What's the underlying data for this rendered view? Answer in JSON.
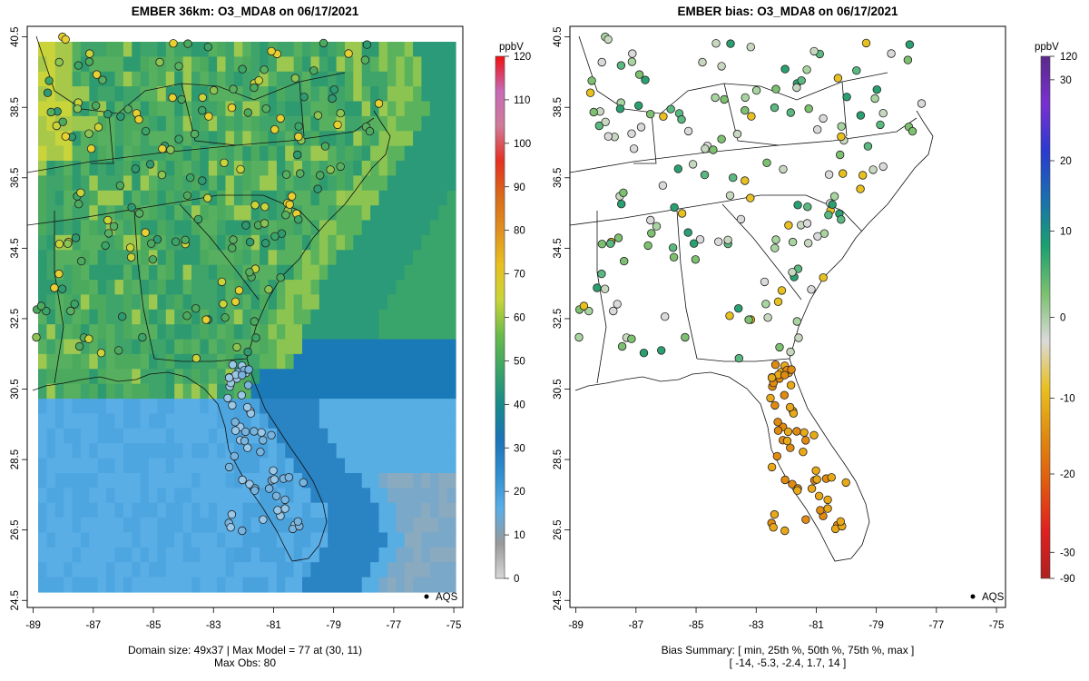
{
  "left_panel": {
    "title": "EMBER 36km: O3_MDA8 on 06/17/2021",
    "caption_line1": "Domain size: 49x37 | Max Model = 77 at (30, 11)",
    "caption_line2": "Max Obs: 80",
    "legend_symbol_label": "AQS",
    "colorbar_unit": "ppbV",
    "colorbar_ticks": [
      "120",
      "110",
      "100",
      "90",
      "80",
      "70",
      "60",
      "50",
      "40",
      "30",
      "20",
      "10",
      "0"
    ],
    "colorbar_tick_values": [
      120,
      110,
      100,
      90,
      80,
      70,
      60,
      50,
      40,
      30,
      20,
      10,
      0
    ],
    "colorbar_range": [
      0,
      120
    ],
    "colorbar_stops": [
      "#d7d7d7",
      "#999999",
      "#5aaee6",
      "#2f8fd0",
      "#1a74b8",
      "#178a8a",
      "#3aa566",
      "#6bbb4a",
      "#c9d43a",
      "#e8c020",
      "#e09020",
      "#d96a1a",
      "#e53020",
      "#d07a9a",
      "#c86ab6",
      "#f01010"
    ]
  },
  "right_panel": {
    "title": "EMBER bias: O3_MDA8 on 06/17/2021",
    "caption_line1": "Bias Summary: [ min, 25th %, 50th %, 75th %, max ]",
    "caption_line2": "[ -14,   -5.3,   -2.4,   1.7,   14 ]",
    "legend_symbol_label": "AQS",
    "colorbar_unit": "ppbV",
    "colorbar_ticks": [
      "120",
      "30",
      "20",
      "10",
      "0",
      "-10",
      "-20",
      "-30",
      "-90"
    ],
    "colorbar_stops": [
      "#b02020",
      "#e02020",
      "#e05a10",
      "#e08a10",
      "#e8c020",
      "#dadada",
      "#7cc070",
      "#1aa070",
      "#1a6fb0",
      "#2a3ad0",
      "#7a30d0",
      "#5a2a8a"
    ]
  },
  "axes": {
    "x_ticks": [
      "-89",
      "-87",
      "-85",
      "-83",
      "-81",
      "-79",
      "-77",
      "-75"
    ],
    "x_tick_values": [
      -89,
      -87,
      -85,
      -83,
      -81,
      -79,
      -77,
      -75
    ],
    "y_ticks": [
      "24.5",
      "26.5",
      "28.5",
      "30.5",
      "32.5",
      "34.5",
      "36.5",
      "38.5",
      "40.5"
    ],
    "y_tick_values": [
      24.5,
      26.5,
      28.5,
      30.5,
      32.5,
      34.5,
      36.5,
      38.5,
      40.5
    ],
    "lon_range": [
      -89.2,
      -74.7
    ],
    "lat_range": [
      24.3,
      40.8
    ]
  },
  "colors": {
    "land_default": "#3fa46a",
    "ocean_near": "#2a83c2",
    "ocean_far": "#56aee2",
    "marker_outline": "#222222"
  }
}
